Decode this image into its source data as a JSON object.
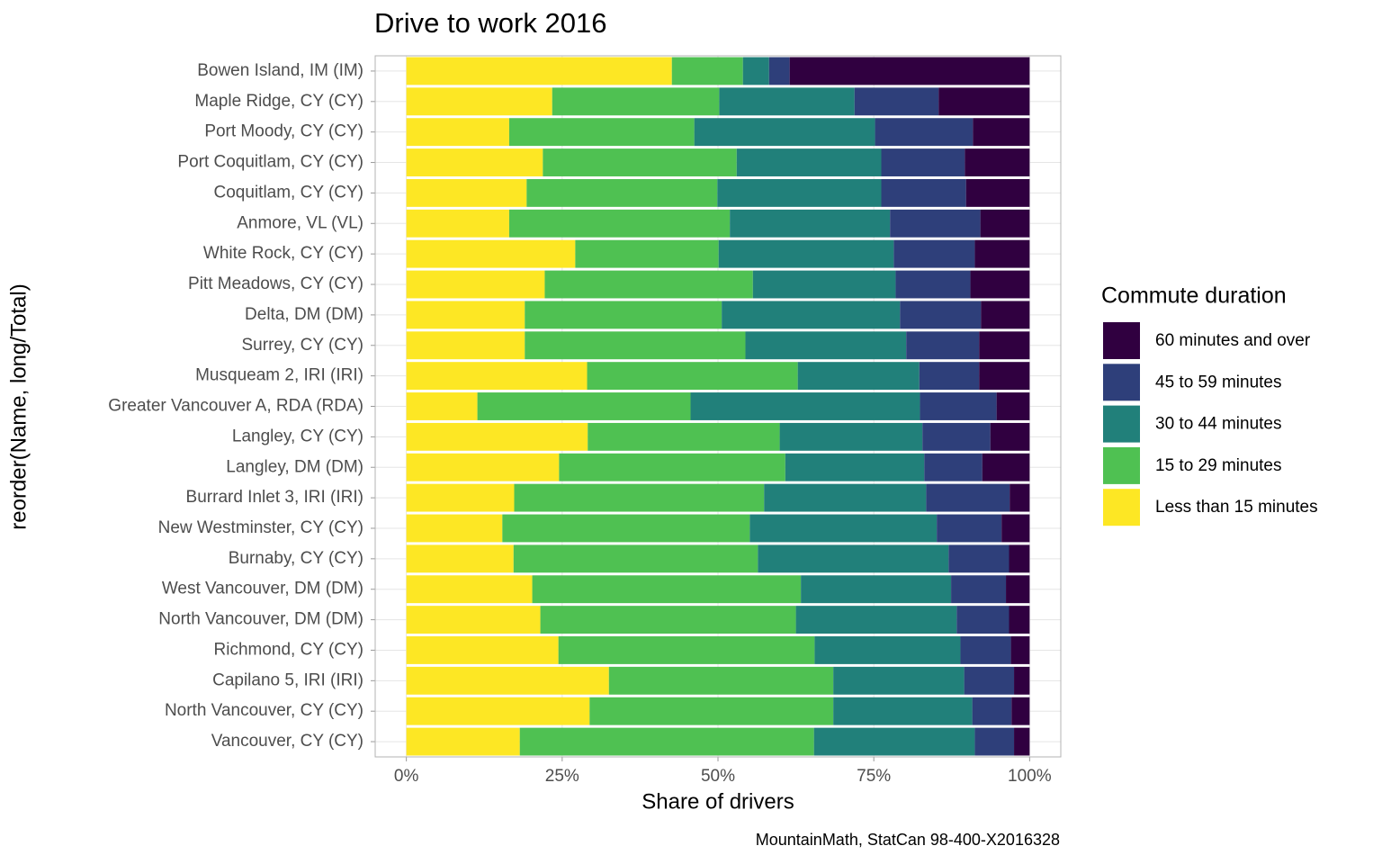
{
  "chart_data": {
    "type": "bar",
    "orientation": "horizontal",
    "stacked": true,
    "title": "Drive to work 2016",
    "x_label": "Share of drivers",
    "y_label": "reorder(Name, long/Total)",
    "caption": "MountainMath, StatCan 98-400-X2016328",
    "legend_title": "Commute duration",
    "legend_position": "right",
    "grid": true,
    "xlim": [
      -5,
      105
    ],
    "xticks": [
      {
        "value": 0,
        "label": "0%"
      },
      {
        "value": 25,
        "label": "25%"
      },
      {
        "value": 50,
        "label": "50%"
      },
      {
        "value": 75,
        "label": "75%"
      },
      {
        "value": 100,
        "label": "100%"
      }
    ],
    "categories": [
      "Bowen Island, IM (IM)",
      "Maple Ridge, CY (CY)",
      "Port Moody, CY (CY)",
      "Port Coquitlam, CY (CY)",
      "Coquitlam, CY (CY)",
      "Anmore, VL (VL)",
      "White Rock, CY (CY)",
      "Pitt Meadows, CY (CY)",
      "Delta, DM (DM)",
      "Surrey, CY (CY)",
      "Musqueam 2, IRI (IRI)",
      "Greater Vancouver A, RDA (RDA)",
      "Langley, CY (CY)",
      "Langley, DM (DM)",
      "Burrard Inlet 3, IRI (IRI)",
      "New Westminster, CY (CY)",
      "Burnaby, CY (CY)",
      "West Vancouver, DM (DM)",
      "North Vancouver, DM (DM)",
      "Richmond, CY (CY)",
      "Capilano 5, IRI (IRI)",
      "North Vancouver, CY (CY)",
      "Vancouver, CY (CY)"
    ],
    "series": [
      {
        "name": "60 minutes and over",
        "color": "#300040",
        "values": [
          38.5,
          14.6,
          9.1,
          10.4,
          10.2,
          7.9,
          8.8,
          9.5,
          7.8,
          8.1,
          8.1,
          5.3,
          6.3,
          7.6,
          3.2,
          4.5,
          3.3,
          3.8,
          3.3,
          3.0,
          2.5,
          2.9,
          2.5
        ]
      },
      {
        "name": "45 to 59 minutes",
        "color": "#2e3f7a",
        "values": [
          3.3,
          13.5,
          15.7,
          13.4,
          13.6,
          14.5,
          13.0,
          12.0,
          13.0,
          11.7,
          9.6,
          12.3,
          10.9,
          9.3,
          13.4,
          10.4,
          9.7,
          8.8,
          8.4,
          8.1,
          8.0,
          6.3,
          6.3
        ]
      },
      {
        "name": "30 to 44 minutes",
        "color": "#21807a",
        "values": [
          4.2,
          21.7,
          29.0,
          23.2,
          26.3,
          25.7,
          28.1,
          22.9,
          28.6,
          25.8,
          19.5,
          36.8,
          22.9,
          22.3,
          26.0,
          30.0,
          30.6,
          24.1,
          25.8,
          23.4,
          21.0,
          22.3,
          25.8
        ]
      },
      {
        "name": "15 to 29 minutes",
        "color": "#4fc152",
        "values": [
          11.4,
          26.8,
          29.7,
          31.1,
          30.6,
          35.4,
          23.0,
          33.4,
          31.6,
          35.4,
          33.8,
          34.2,
          30.8,
          36.3,
          40.1,
          39.7,
          39.2,
          43.1,
          41.0,
          41.1,
          36.0,
          39.1,
          47.2
        ]
      },
      {
        "name": "Less than 15 minutes",
        "color": "#fde724",
        "values": [
          42.6,
          23.4,
          16.5,
          21.9,
          19.3,
          16.5,
          27.1,
          22.2,
          19.0,
          19.0,
          29.0,
          11.4,
          29.1,
          24.5,
          17.3,
          15.4,
          17.2,
          20.2,
          21.5,
          24.4,
          32.5,
          29.4,
          18.2
        ]
      }
    ]
  }
}
